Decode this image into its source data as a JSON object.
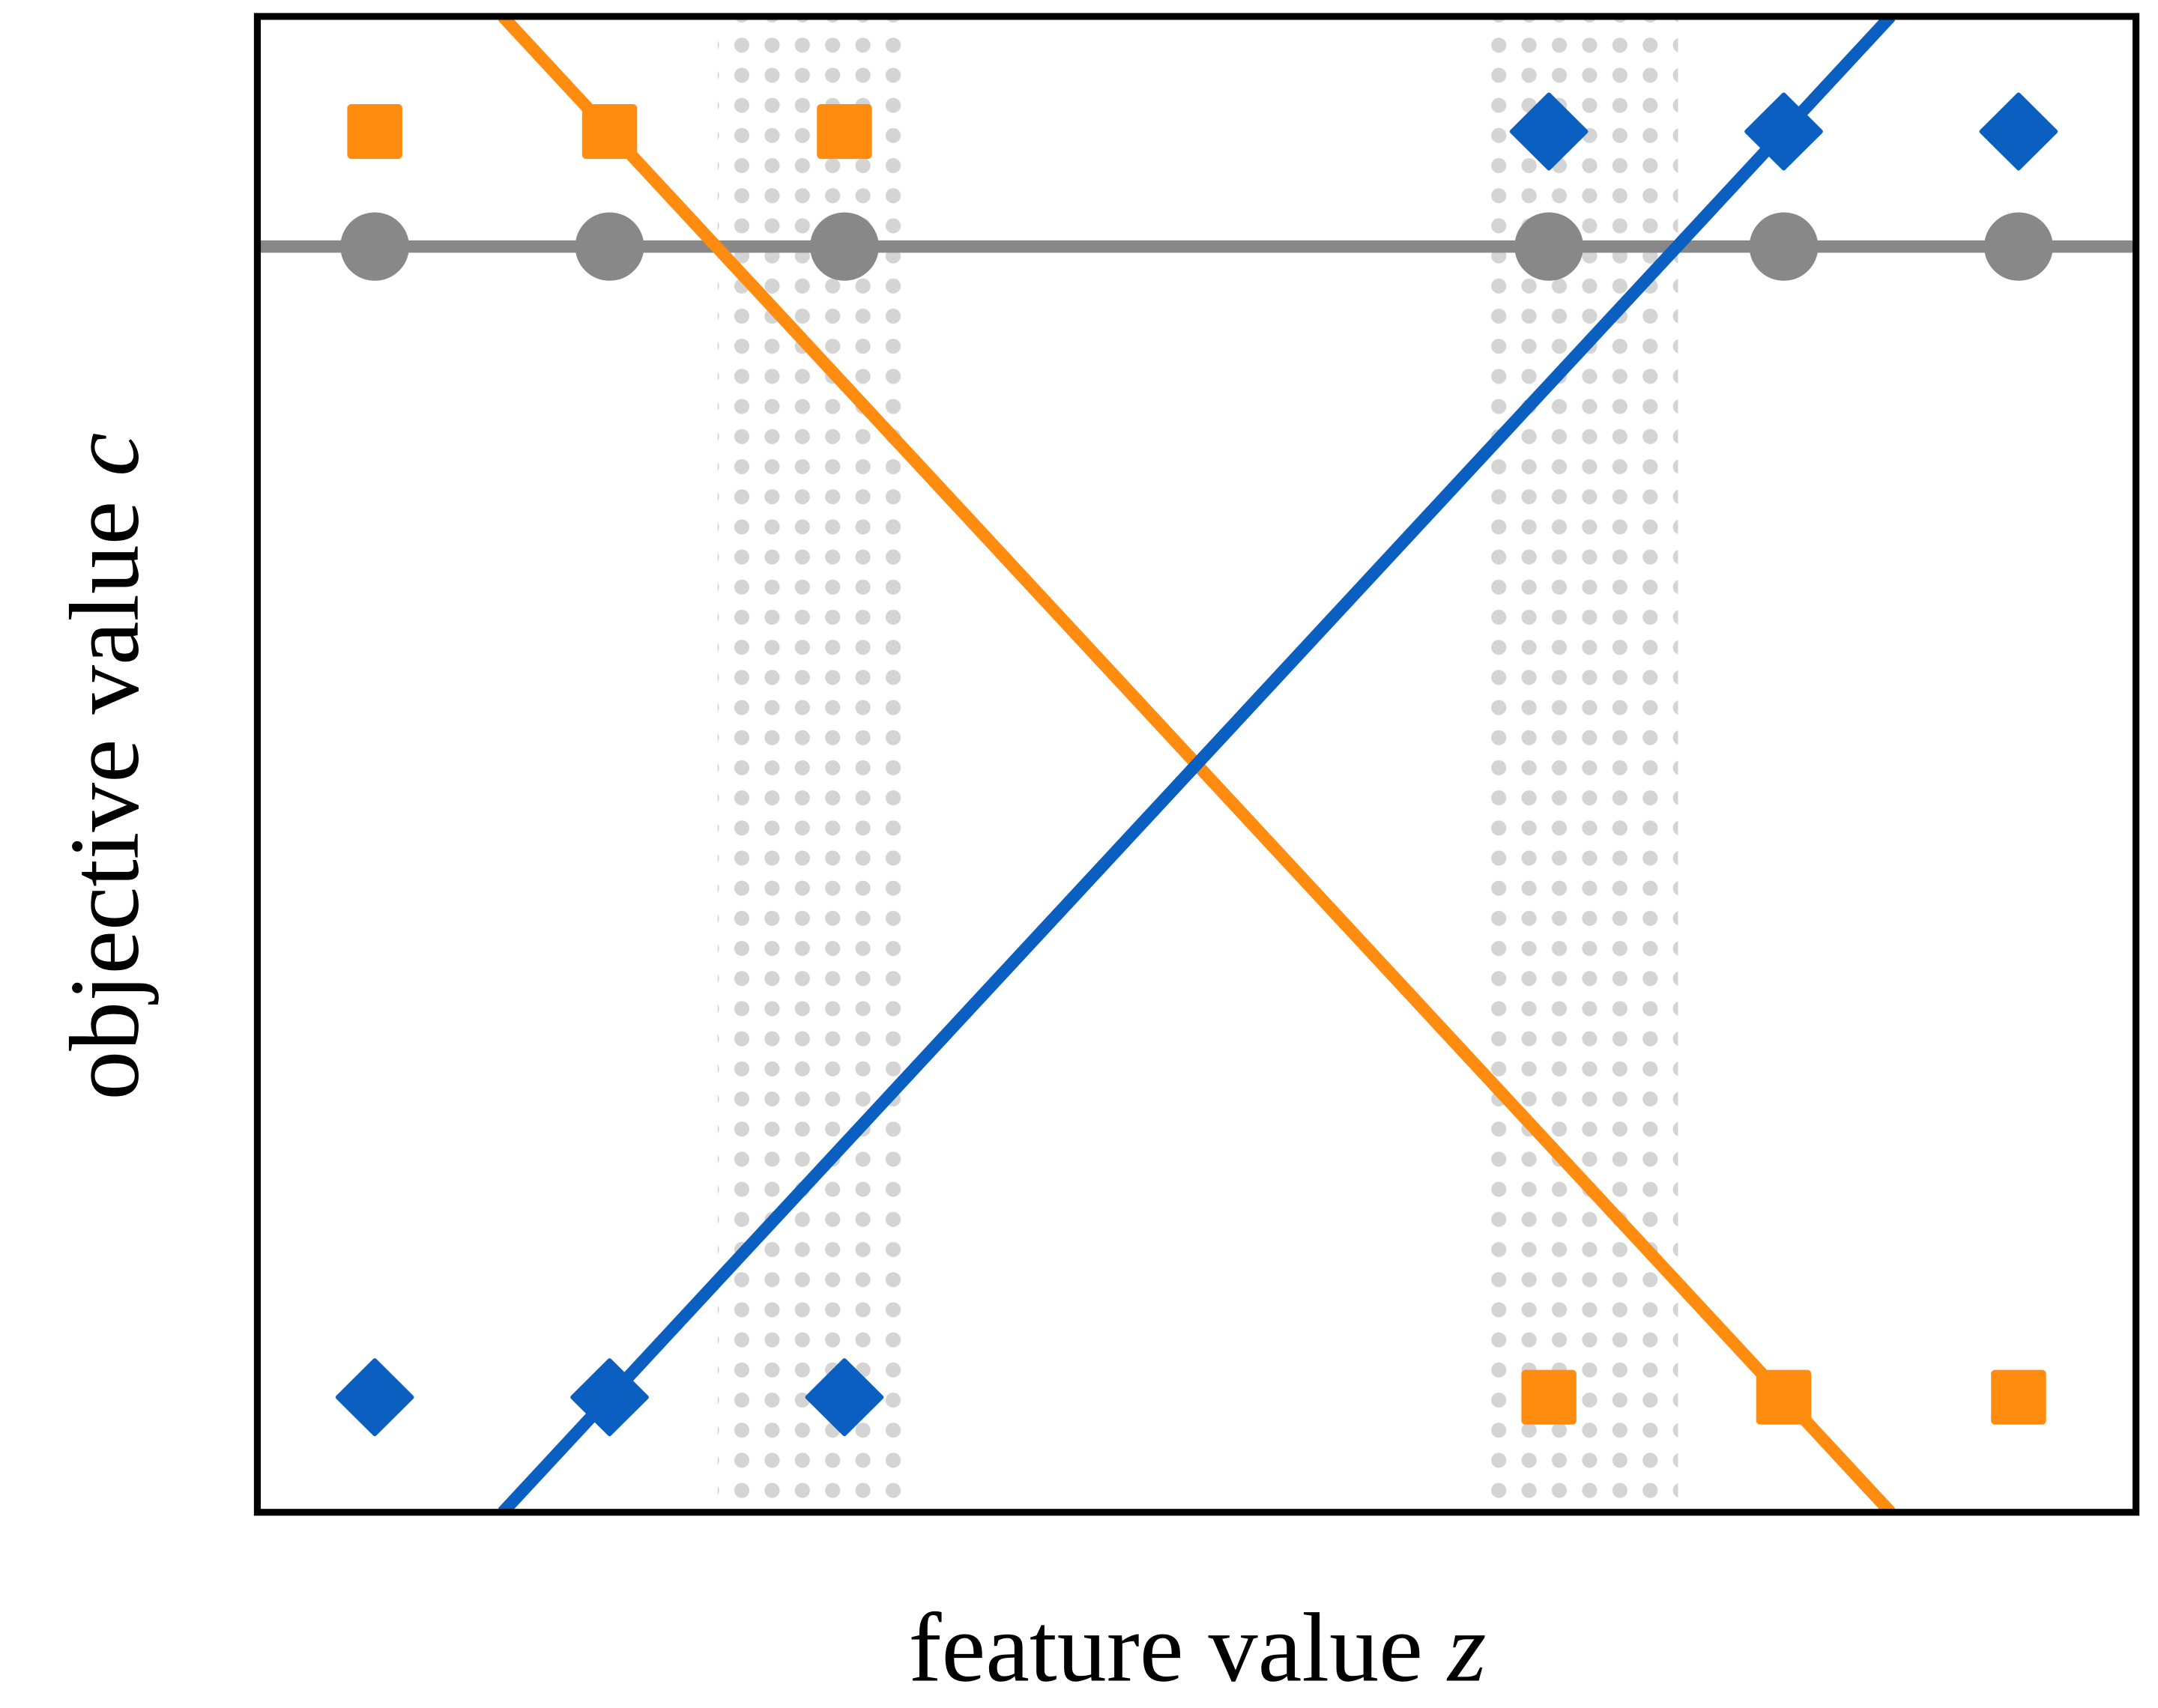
{
  "chart_data": {
    "type": "scatter",
    "xlabel": "feature value",
    "xlabel_symbol": "z",
    "ylabel": "objective value",
    "ylabel_symbol": "c",
    "xlim": [
      0,
      8
    ],
    "ylim": [
      0,
      13
    ],
    "bands": [
      [
        1.96,
        2.77
      ],
      [
        5.24,
        6.05
      ]
    ],
    "band_color": "#d4d4d4",
    "series": [
      {
        "kind": "line",
        "color": "#888888",
        "x": [
          0,
          8
        ],
        "values": [
          11,
          11
        ]
      },
      {
        "kind": "line",
        "color": "#ff8c0f",
        "x": [
          1.045,
          6.955
        ],
        "values": [
          13,
          0
        ]
      },
      {
        "kind": "line",
        "color": "#0a5fc0",
        "x": [
          1.045,
          6.955
        ],
        "values": [
          0,
          13
        ]
      },
      {
        "kind": "points",
        "marker": "circle",
        "color": "#888888",
        "x": [
          0.5,
          1.5,
          2.5,
          5.5,
          6.5,
          7.5
        ],
        "values": [
          11,
          11,
          11,
          11,
          11,
          11
        ]
      },
      {
        "kind": "points",
        "marker": "square",
        "color": "#ff8c0f",
        "x": [
          0.5,
          1.5,
          2.5,
          5.5,
          6.5,
          7.5
        ],
        "values": [
          12,
          12,
          12,
          1,
          1,
          1
        ]
      },
      {
        "kind": "points",
        "marker": "diamond",
        "color": "#0a5fc0",
        "x": [
          0.5,
          1.5,
          2.5,
          5.5,
          6.5,
          7.5
        ],
        "values": [
          1,
          1,
          1,
          12,
          12,
          12
        ]
      }
    ]
  }
}
